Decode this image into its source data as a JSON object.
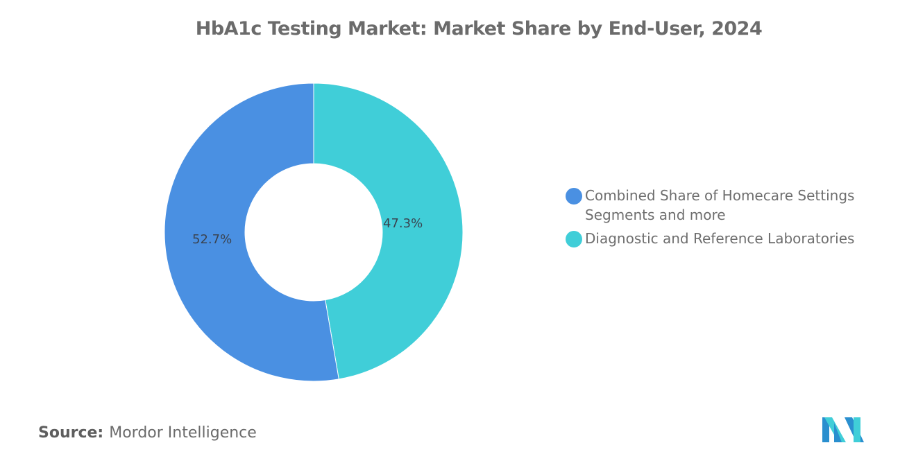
{
  "title": "HbA1c Testing Market: Market Share by End-User, 2024",
  "chart_data": {
    "type": "pie",
    "variant": "donut",
    "title": "HbA1c Testing Market: Market Share by End-User, 2024",
    "categories": [
      "Combined Share of Homecare Settings Segments and more",
      "Diagnostic and Reference Laboratories"
    ],
    "values": [
      52.7,
      47.3
    ],
    "unit": "%",
    "colors": [
      "#4a90e2",
      "#40ced8"
    ],
    "data_labels": [
      "52.7%",
      "47.3%"
    ],
    "legend_position": "right",
    "start_angle": "12 o'clock, clockwise from Diagnostic and Reference Laboratories"
  },
  "slices": [
    {
      "label": "Combined Share of Homecare Settings Segments and more",
      "value_text": "52.7%",
      "color": "#4a90e2"
    },
    {
      "label": "Diagnostic and Reference Laboratories",
      "value_text": "47.3%",
      "color": "#40ced8"
    }
  ],
  "legend": [
    {
      "label": "Combined Share of Homecare Settings Segments and more",
      "color": "#4a90e2"
    },
    {
      "label": "Diagnostic and Reference Laboratories",
      "color": "#40ced8"
    }
  ],
  "source": {
    "label": "Source:",
    "value": "Mordor Intelligence"
  },
  "logo": {
    "icon": "mordor-intelligence-logo-icon",
    "colors": [
      "#2a8fcf",
      "#40ced8"
    ]
  }
}
